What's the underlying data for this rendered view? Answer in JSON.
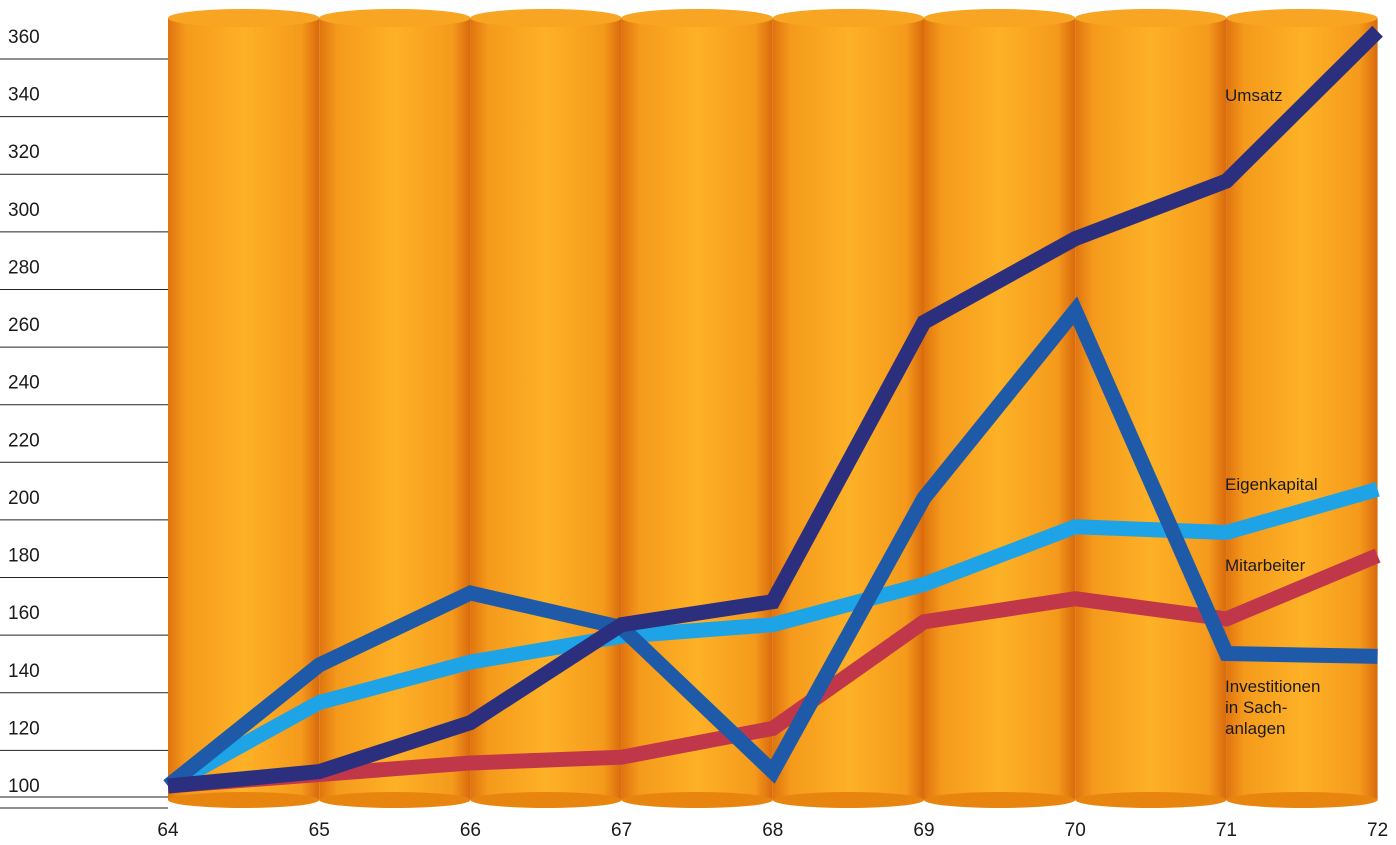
{
  "chart_data": {
    "type": "line",
    "title": "",
    "xlabel": "",
    "ylabel": "",
    "x": [
      "64",
      "65",
      "66",
      "67",
      "68",
      "69",
      "70",
      "71",
      "72"
    ],
    "ylim": [
      100,
      360
    ],
    "yticks": [
      "100",
      "120",
      "140",
      "160",
      "180",
      "200",
      "220",
      "240",
      "260",
      "280",
      "300",
      "320",
      "340",
      "360"
    ],
    "grid": false,
    "background": "orange cylinders, one per year",
    "series": [
      {
        "key": "mitarbeiter",
        "name": "Mitarbeiter",
        "color": "#c0374a",
        "values": [
          100,
          104,
          108,
          110,
          120,
          157,
          165,
          158,
          180
        ]
      },
      {
        "key": "eigenkapital",
        "name": "Eigenkapital",
        "color": "#1ea3e6",
        "values": [
          100,
          129,
          143,
          152,
          156,
          170,
          190,
          188,
          203
        ]
      },
      {
        "key": "investitionen",
        "name": "Investitionen in Sach- anlagen",
        "label_lines": [
          "Investitionen",
          "in Sach-",
          "anlagen"
        ],
        "color": "#1e5aa8",
        "values": [
          100,
          142,
          167,
          155,
          105,
          200,
          265,
          146,
          145
        ]
      },
      {
        "key": "umsatz",
        "name": "Umsatz",
        "color": "#2b2f7e",
        "values": [
          100,
          105,
          122,
          156,
          164,
          261,
          290,
          310,
          362
        ]
      }
    ]
  }
}
